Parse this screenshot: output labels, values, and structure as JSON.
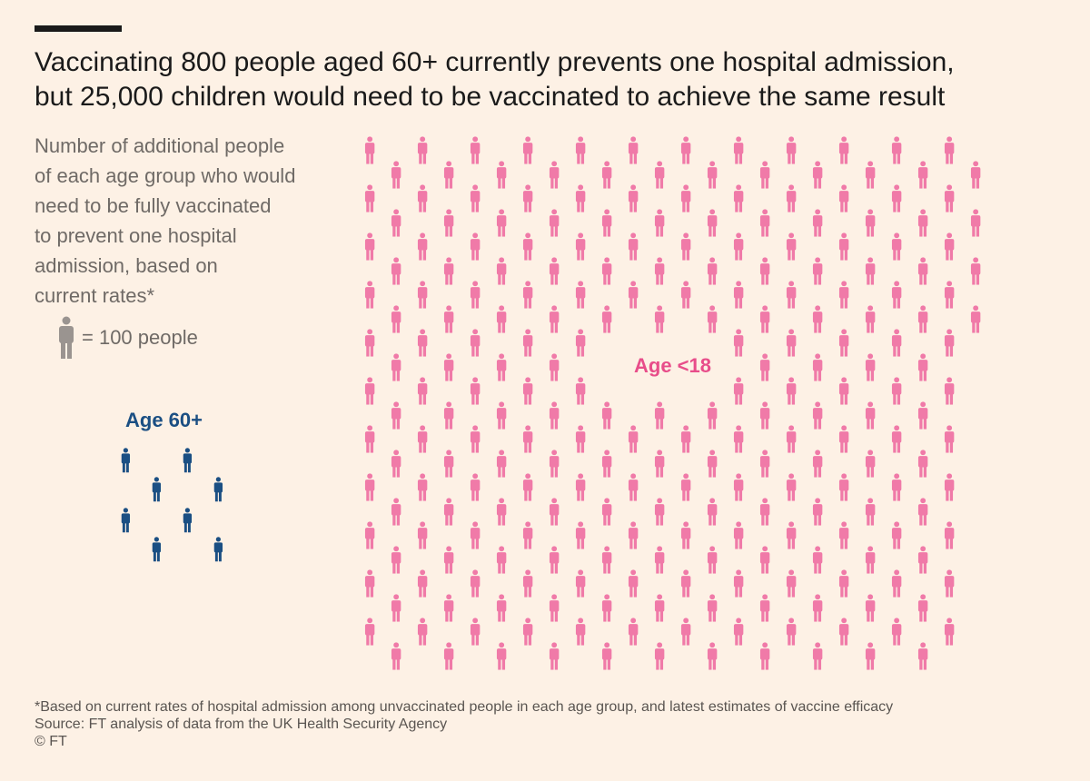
{
  "title": {
    "line1": "Vaccinating 800 people aged 60+ currently prevents one hospital admission,",
    "line2": "but 25,000 children would need to be vaccinated to achieve the same result"
  },
  "subtitle": {
    "lines": [
      "Number of additional people",
      "of each age group who would",
      "need to be fully vaccinated",
      "to prevent one hospital",
      "admission, based on",
      "current rates*"
    ]
  },
  "legend": {
    "label": "= 100 people",
    "icon": "person-icon"
  },
  "chart_data": {
    "type": "pictogram",
    "unit": "= 100 people",
    "people_per_icon": 100,
    "series": [
      {
        "name": "Age 60+",
        "label": "Age 60+",
        "people": 800,
        "icons": 8,
        "color": "#1b4f83"
      },
      {
        "name": "Age <18",
        "label": "Age <18",
        "people": 25000,
        "icons": 250,
        "color": "#f07aa8"
      }
    ]
  },
  "footer": {
    "note": "*Based on current rates of hospital admission among unvaccinated people in each age group, and latest estimates of vaccine efficacy",
    "source": "Source: FT analysis of data from the UK Health Security Agency",
    "copyright": "© FT"
  },
  "colors": {
    "background": "#fdf1e5",
    "legend_icon": "#9a9490",
    "age60": "#1b4f83",
    "age18": "#f07aa8",
    "age18_label": "#e84d8a"
  }
}
